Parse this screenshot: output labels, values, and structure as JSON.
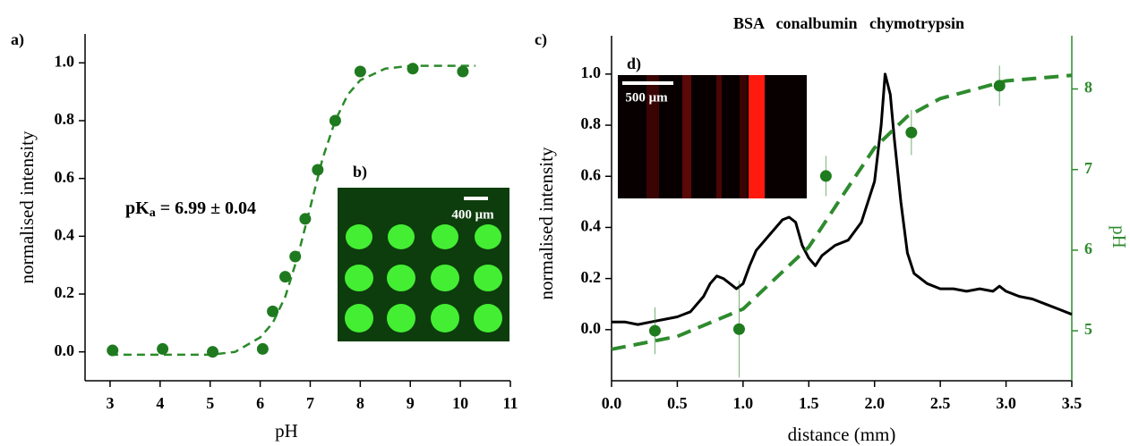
{
  "chart_data": [
    {
      "type": "scatter",
      "panel_label": "a)",
      "xlabel": "pH",
      "ylabel": "normalised intensity",
      "annotation": {
        "main": "pK",
        "sub": "a",
        "rest": " = 6.99 ± 0.04"
      },
      "inset": {
        "label": "b)",
        "scale_bar": "400 μm"
      },
      "xlim": [
        2.5,
        11
      ],
      "xticks": [
        3,
        4,
        5,
        6,
        7,
        8,
        9,
        10,
        11
      ],
      "ylim": [
        -0.1,
        1.1
      ],
      "yticks": [
        {
          "value": 0,
          "label": "0.0"
        },
        0.2,
        0.4,
        0.6,
        0.8,
        {
          "value": 1,
          "label": "1.0"
        }
      ],
      "series": [
        {
          "type": "scatter",
          "color": "#1f7a1f",
          "x": [
            3.05,
            4.05,
            5.05,
            6.05,
            6.25,
            6.5,
            6.7,
            6.9,
            7.15,
            7.5,
            8.0,
            9.05,
            10.05
          ],
          "values": [
            0.005,
            0.01,
            0.0,
            0.01,
            0.14,
            0.26,
            0.33,
            0.46,
            0.63,
            0.8,
            0.97,
            0.98,
            0.97
          ]
        },
        {
          "type": "line",
          "dashed": true,
          "color": "#2a8a2a",
          "x": [
            3,
            4,
            5,
            5.5,
            6,
            6.25,
            6.5,
            6.75,
            7,
            7.25,
            7.5,
            7.75,
            8,
            8.5,
            9,
            9.5,
            10.3
          ],
          "values": [
            -0.01,
            -0.01,
            -0.01,
            0.0,
            0.05,
            0.1,
            0.19,
            0.33,
            0.5,
            0.67,
            0.8,
            0.89,
            0.94,
            0.98,
            0.99,
            0.99,
            0.99
          ]
        }
      ]
    },
    {
      "type": "line",
      "panel_label": "c)",
      "title": "BSA   conalbumin   chymotrypsin",
      "xlabel": "distance (mm)",
      "ylabel": "normalised intensity",
      "y2label": "pH",
      "y2_color": "#2e8b2e",
      "inset": {
        "label": "d)",
        "scale_bar": "500 μm"
      },
      "xlim": [
        0,
        3.5
      ],
      "xticks": [
        {
          "value": 0,
          "label": "0.0"
        },
        0.5,
        {
          "value": 1,
          "label": "1.0"
        },
        1.5,
        {
          "value": 2,
          "label": "2.0"
        },
        2.5,
        {
          "value": 3,
          "label": "3.0"
        },
        3.5
      ],
      "ylim": [
        -0.2,
        1.15
      ],
      "yticks": [
        {
          "value": 0,
          "label": "0.0"
        },
        0.2,
        0.4,
        0.6,
        0.8,
        {
          "value": 1,
          "label": "1.0"
        }
      ],
      "y2lim": [
        4.38,
        8.66
      ],
      "y2ticks": [
        5,
        6,
        7,
        8
      ],
      "series": [
        {
          "type": "line",
          "color": "#000000",
          "x": [
            0,
            0.1,
            0.2,
            0.3,
            0.4,
            0.5,
            0.6,
            0.7,
            0.75,
            0.8,
            0.85,
            0.9,
            0.95,
            1.0,
            1.05,
            1.1,
            1.2,
            1.3,
            1.35,
            1.4,
            1.45,
            1.5,
            1.55,
            1.6,
            1.7,
            1.8,
            1.9,
            2.0,
            2.05,
            2.08,
            2.12,
            2.15,
            2.2,
            2.25,
            2.3,
            2.4,
            2.5,
            2.6,
            2.7,
            2.8,
            2.9,
            2.95,
            3.0,
            3.1,
            3.2,
            3.3,
            3.4,
            3.5
          ],
          "values": [
            0.03,
            0.03,
            0.02,
            0.03,
            0.04,
            0.05,
            0.07,
            0.13,
            0.18,
            0.21,
            0.2,
            0.18,
            0.16,
            0.18,
            0.25,
            0.31,
            0.37,
            0.43,
            0.44,
            0.42,
            0.33,
            0.28,
            0.25,
            0.29,
            0.33,
            0.35,
            0.42,
            0.58,
            0.8,
            1.0,
            0.92,
            0.75,
            0.5,
            0.3,
            0.22,
            0.18,
            0.16,
            0.16,
            0.15,
            0.16,
            0.15,
            0.17,
            0.15,
            0.13,
            0.12,
            0.1,
            0.08,
            0.06
          ]
        },
        {
          "type": "scatter",
          "axis": "y2",
          "color": "#1e7b1e",
          "x": [
            0.33,
            0.97,
            1.63,
            2.28,
            2.95
          ],
          "values": [
            5.0,
            5.02,
            6.92,
            7.46,
            8.04
          ],
          "errors": [
            0.29,
            0.6,
            0.25,
            0.28,
            0.25
          ]
        },
        {
          "type": "line",
          "axis": "y2",
          "dashed": true,
          "color": "#2e8b2e",
          "x": [
            0,
            0.5,
            1.0,
            1.5,
            1.75,
            2.0,
            2.25,
            2.5,
            3.0,
            3.5
          ],
          "values": [
            4.77,
            4.93,
            5.27,
            6.04,
            6.66,
            7.27,
            7.66,
            7.88,
            8.1,
            8.17
          ]
        }
      ]
    }
  ]
}
